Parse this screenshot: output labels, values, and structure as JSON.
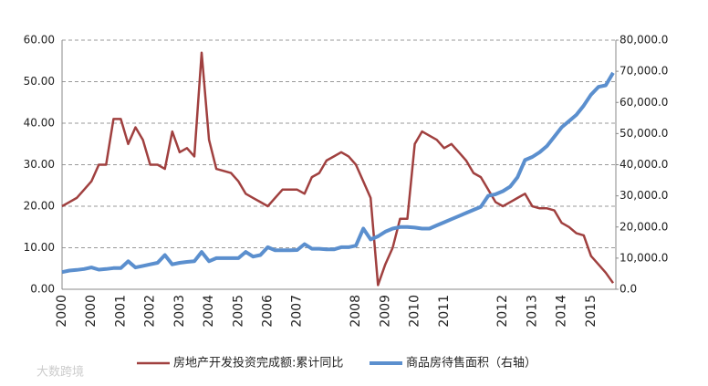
{
  "chart_data": {
    "type": "line",
    "categories": [
      "2000",
      null,
      null,
      null,
      "2000",
      null,
      null,
      null,
      "2001",
      null,
      null,
      null,
      "2002",
      null,
      null,
      null,
      "2003",
      null,
      null,
      null,
      "2004",
      null,
      null,
      null,
      "2005",
      null,
      null,
      null,
      "2006",
      null,
      null,
      null,
      "2007",
      null,
      null,
      null,
      null,
      null,
      null,
      null,
      "2008",
      null,
      null,
      null,
      "2009",
      null,
      null,
      null,
      "2010",
      null,
      null,
      null,
      "2011",
      null,
      null,
      null,
      null,
      null,
      null,
      null,
      "2012",
      null,
      null,
      null,
      "2013",
      null,
      null,
      null,
      "2014",
      null,
      null,
      null,
      "2015",
      null,
      null,
      null
    ],
    "series": [
      {
        "name": "房地产开发投资完成额:累计同比",
        "color": "#a0403f",
        "axis": "y",
        "values": [
          20,
          21,
          22,
          24,
          26,
          30,
          30,
          41,
          41,
          35,
          39,
          36,
          30,
          30,
          29,
          38,
          33,
          34,
          32,
          57,
          36,
          29,
          28.5,
          28,
          26,
          23,
          22,
          21,
          20,
          22,
          24,
          24,
          24,
          23,
          27,
          28,
          31,
          32,
          33,
          32,
          30,
          26,
          22,
          1,
          6,
          10,
          17,
          17,
          35,
          38,
          37,
          36,
          34,
          35,
          33,
          31,
          28,
          27,
          24,
          21,
          20,
          21,
          22,
          23,
          20,
          19.5,
          19.5,
          19,
          16,
          15,
          13.5,
          13,
          8,
          6,
          4,
          1.5
        ]
      },
      {
        "name": "商品房待售面积（右轴）",
        "color": "#5b8fce",
        "axis": "y2",
        "values": [
          5500,
          6000,
          6200,
          6500,
          7000,
          6300,
          6500,
          6800,
          6800,
          9000,
          7000,
          7500,
          8000,
          8500,
          11000,
          8000,
          8500,
          8800,
          9000,
          12000,
          9000,
          10000,
          10000,
          10000,
          10000,
          12000,
          10500,
          11000,
          13500,
          12500,
          12500,
          12500,
          12600,
          14500,
          13000,
          13000,
          12800,
          12800,
          13500,
          13500,
          14000,
          19500,
          16000,
          17000,
          18500,
          19500,
          20000,
          20000,
          19800,
          19500,
          19500,
          20500,
          21500,
          22500,
          23500,
          24500,
          25500,
          26500,
          30000,
          30500,
          31500,
          33000,
          36000,
          41500,
          42500,
          44000,
          46000,
          49000,
          52000,
          54000,
          56000,
          59000,
          62500,
          65000,
          65500,
          69500
        ]
      }
    ],
    "ylim": [
      0,
      60
    ],
    "yticks": [
      {
        "value": 0,
        "label": "0.00"
      },
      {
        "value": 10,
        "label": "10.00"
      },
      {
        "value": 20,
        "label": "20.00"
      },
      {
        "value": 30,
        "label": "30.00"
      },
      {
        "value": 40,
        "label": "40.00"
      },
      {
        "value": 50,
        "label": "50.00"
      },
      {
        "value": 60,
        "label": "60.00"
      }
    ],
    "y2lim": [
      0,
      80000
    ],
    "y2ticks": [
      {
        "value": 0,
        "label": "0.0"
      },
      {
        "value": 10000,
        "label": "10,000.0"
      },
      {
        "value": 20000,
        "label": "20,000.0"
      },
      {
        "value": 30000,
        "label": "30,000.0"
      },
      {
        "value": 40000,
        "label": "40,000.0"
      },
      {
        "value": 50000,
        "label": "50,000.0"
      },
      {
        "value": 60000,
        "label": "60,000.0"
      },
      {
        "value": 70000,
        "label": "70,000.0"
      },
      {
        "value": 80000,
        "label": "80,000.0"
      }
    ],
    "grid": true,
    "legend": "bottom",
    "watermark": "大数跨境"
  }
}
